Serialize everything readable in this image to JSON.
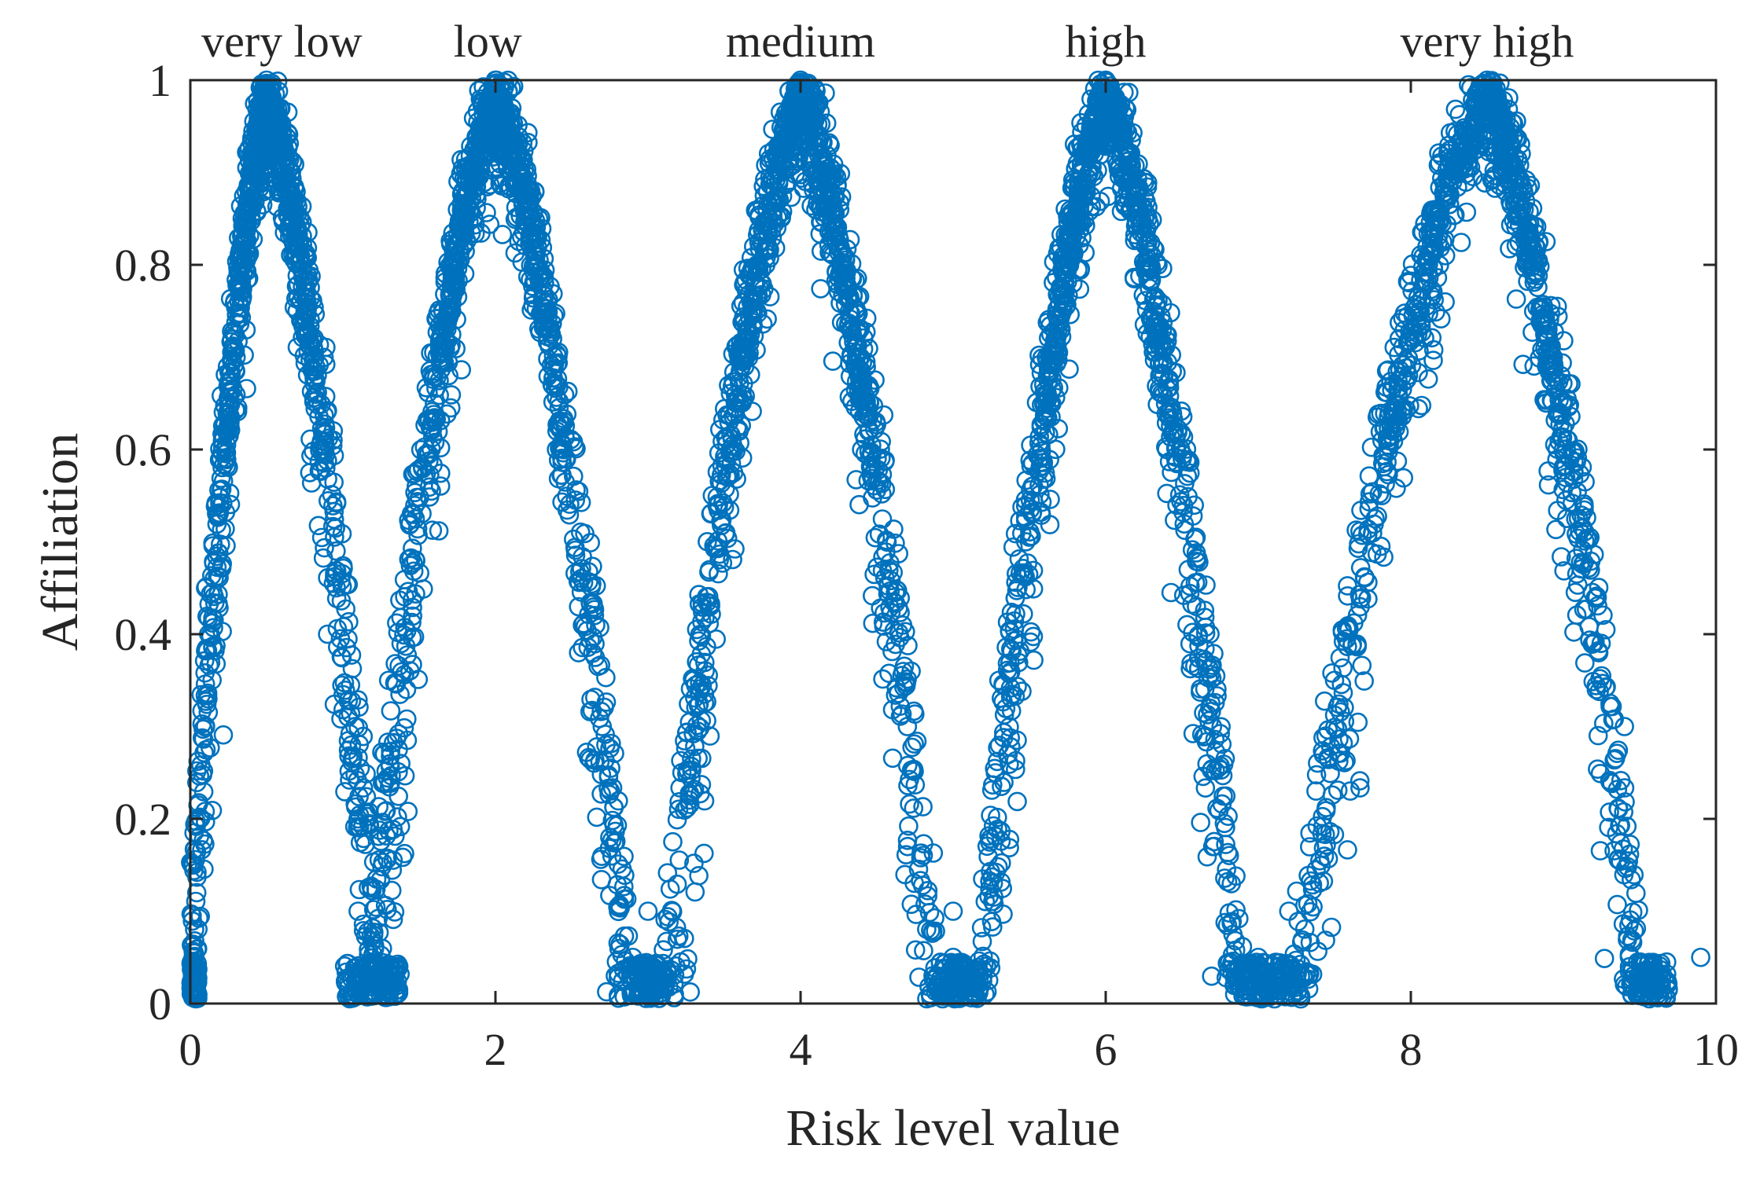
{
  "chart_data": {
    "type": "scatter",
    "title": "",
    "xlabel": "Risk level value",
    "ylabel": "Affiliation",
    "xlim": [
      0,
      10
    ],
    "ylim": [
      0,
      1
    ],
    "xticks": [
      0,
      2,
      4,
      6,
      8,
      10
    ],
    "xtick_labels": [
      "0",
      "2",
      "4",
      "6",
      "8",
      "10"
    ],
    "yticks": [
      0,
      0.2,
      0.4,
      0.6,
      0.8,
      1
    ],
    "ytick_labels": [
      "0",
      "0.2",
      "0.4",
      "0.6",
      "0.8",
      "1"
    ],
    "grid": false,
    "marker": "open-circle",
    "marker_color": "#0072BD",
    "categories": [
      {
        "name": "very low",
        "label_x": 0.6,
        "peak": 0.5,
        "half_left": 0.5,
        "half_right": 0.7
      },
      {
        "name": "low",
        "label_x": 1.95,
        "peak": 2.0,
        "half_left": 0.8,
        "half_right": 0.85
      },
      {
        "name": "medium",
        "label_x": 4.0,
        "peak": 4.0,
        "half_left": 0.85,
        "half_right": 0.85
      },
      {
        "name": "high",
        "label_x": 6.0,
        "peak": 6.0,
        "half_left": 0.8,
        "half_right": 0.85
      },
      {
        "name": "very high",
        "label_x": 8.5,
        "peak": 8.5,
        "half_left": 1.2,
        "half_right": 0.95
      }
    ],
    "series": [
      {
        "name": "very low",
        "points_per_cluster": 900,
        "sample_points": [
          [
            0.5,
            1.0
          ],
          [
            0.45,
            0.95
          ],
          [
            0.6,
            0.9
          ],
          [
            0.3,
            0.7
          ],
          [
            0.7,
            0.75
          ],
          [
            0.1,
            0.45
          ],
          [
            0.9,
            0.4
          ],
          [
            1.1,
            0.2
          ],
          [
            0.02,
            0.15
          ]
        ]
      },
      {
        "name": "low",
        "points_per_cluster": 900,
        "sample_points": [
          [
            2.0,
            1.0
          ],
          [
            1.9,
            0.95
          ],
          [
            2.1,
            0.9
          ],
          [
            1.6,
            0.65
          ],
          [
            2.4,
            0.6
          ],
          [
            1.3,
            0.35
          ],
          [
            2.7,
            0.3
          ],
          [
            1.1,
            0.1
          ],
          [
            2.9,
            0.05
          ]
        ]
      },
      {
        "name": "medium",
        "points_per_cluster": 900,
        "sample_points": [
          [
            4.0,
            1.0
          ],
          [
            3.95,
            0.95
          ],
          [
            4.1,
            0.9
          ],
          [
            3.6,
            0.65
          ],
          [
            4.4,
            0.6
          ],
          [
            3.3,
            0.35
          ],
          [
            4.7,
            0.3
          ],
          [
            3.0,
            0.1
          ],
          [
            5.0,
            0.05
          ]
        ]
      },
      {
        "name": "high",
        "points_per_cluster": 900,
        "sample_points": [
          [
            6.0,
            1.0
          ],
          [
            5.95,
            0.95
          ],
          [
            6.1,
            0.9
          ],
          [
            5.6,
            0.65
          ],
          [
            6.4,
            0.6
          ],
          [
            5.3,
            0.35
          ],
          [
            6.7,
            0.3
          ],
          [
            5.0,
            0.1
          ],
          [
            7.0,
            0.05
          ]
        ]
      },
      {
        "name": "very high",
        "points_per_cluster": 900,
        "sample_points": [
          [
            8.5,
            1.0
          ],
          [
            8.4,
            0.95
          ],
          [
            8.6,
            0.9
          ],
          [
            7.9,
            0.65
          ],
          [
            9.0,
            0.6
          ],
          [
            7.5,
            0.35
          ],
          [
            9.4,
            0.3
          ],
          [
            7.2,
            0.1
          ],
          [
            9.9,
            0.05
          ]
        ]
      }
    ]
  }
}
